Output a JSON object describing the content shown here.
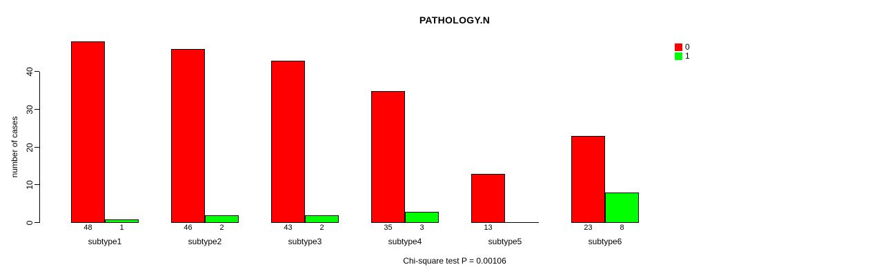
{
  "chart_data": {
    "type": "bar",
    "title": "PATHOLOGY.N",
    "ylabel": "number of cases",
    "xlabel": "",
    "footnote": "Chi-square test P = 0.00106",
    "categories": [
      "subtype1",
      "subtype2",
      "subtype3",
      "subtype4",
      "subtype5",
      "subtype6"
    ],
    "series": [
      {
        "name": "0",
        "color": "#FF0000",
        "values": [
          48,
          46,
          43,
          35,
          13,
          23
        ]
      },
      {
        "name": "1",
        "color": "#00FF00",
        "values": [
          1,
          2,
          2,
          3,
          0,
          8
        ]
      }
    ],
    "yticks": [
      0,
      10,
      20,
      30,
      40
    ],
    "ylim": [
      0,
      48
    ],
    "grid": false,
    "legend_position": "top-right",
    "bar_outline_color": "#000000",
    "value_labels_shown": true,
    "value_labels_hide_zero": true
  }
}
